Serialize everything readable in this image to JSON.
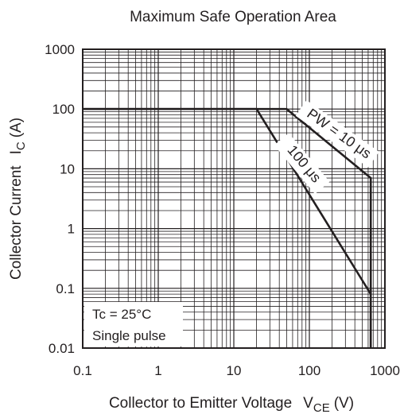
{
  "chart_data": {
    "type": "line",
    "title": "Maximum Safe Operation Area",
    "xlabel": {
      "main": "Collector to Emitter Voltage",
      "symbol": "V",
      "subscript": "CE",
      "unit": "(V)"
    },
    "ylabel": {
      "main": "Collector Current",
      "symbol": "I",
      "subscript": "C",
      "unit": "(A)"
    },
    "x_scale": "log",
    "y_scale": "log",
    "xlim": [
      0.1,
      1000
    ],
    "ylim": [
      0.01,
      1000
    ],
    "x_ticks": [
      "0.1",
      "1",
      "10",
      "100",
      "1000"
    ],
    "y_ticks": [
      "0.01",
      "0.1",
      "1",
      "10",
      "100",
      "1000"
    ],
    "x_tick_values": [
      0.1,
      1,
      10,
      100,
      1000
    ],
    "y_tick_values": [
      0.01,
      0.1,
      1,
      10,
      100,
      1000
    ],
    "grid": true,
    "series": [
      {
        "name": "PW = 10 μs",
        "x": [
          0.1,
          50,
          650,
          650
        ],
        "y": [
          100,
          100,
          7,
          0.01
        ]
      },
      {
        "name": "100 μs",
        "x": [
          0.1,
          20,
          650,
          650
        ],
        "y": [
          100,
          100,
          0.08,
          0.01
        ]
      }
    ],
    "annotations": [
      "Tc = 25°C",
      "Single pulse"
    ]
  }
}
